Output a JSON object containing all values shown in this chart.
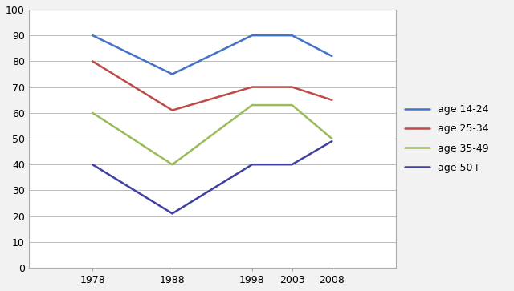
{
  "years": [
    1978,
    1988,
    1998,
    2003,
    2008
  ],
  "series": [
    {
      "label": "age 14-24",
      "values": [
        90,
        75,
        90,
        90,
        82
      ],
      "color": "#4472C4"
    },
    {
      "label": "age 25-34",
      "values": [
        80,
        61,
        70,
        70,
        65
      ],
      "color": "#BE4B48"
    },
    {
      "label": "age 35-49",
      "values": [
        60,
        40,
        63,
        63,
        50
      ],
      "color": "#9BBB59"
    },
    {
      "label": "age 50+",
      "values": [
        40,
        21,
        40,
        40,
        49
      ],
      "color": "#4040A0"
    }
  ],
  "ylim": [
    0,
    100
  ],
  "yticks": [
    0,
    10,
    20,
    30,
    40,
    50,
    60,
    70,
    80,
    90,
    100
  ],
  "xticks": [
    1978,
    1988,
    1998,
    2003,
    2008
  ],
  "xlim": [
    1970,
    2016
  ],
  "figure_facecolor": "#F2F2F2",
  "plot_facecolor": "#FFFFFF",
  "grid_color": "#BBBBBB",
  "spine_color": "#AAAAAA",
  "linewidth": 1.8,
  "legend_fontsize": 9,
  "tick_fontsize": 9,
  "legend_labelspacing": 0.9,
  "legend_handlelength": 2.5
}
